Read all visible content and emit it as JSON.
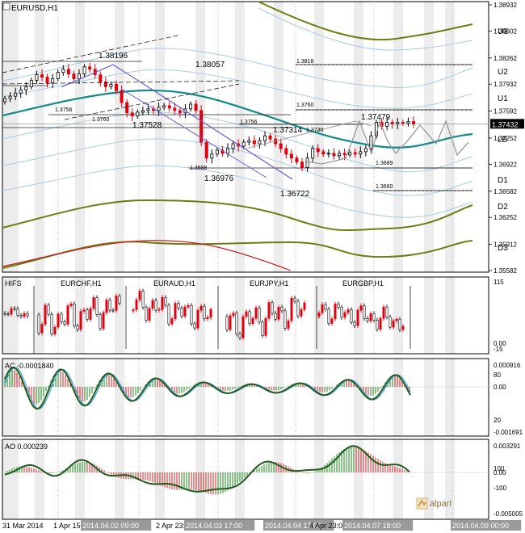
{
  "chart_data": [
    {
      "type": "line",
      "title": "EURUSD,H1",
      "y_labels": [
        "1.38932",
        "1.38602",
        "1.38262",
        "1.37932",
        "1.37592",
        "1.37432",
        "1.37252",
        "1.36922",
        "1.36582",
        "1.36252",
        "1.35912",
        "1.35582"
      ],
      "current_price": "1.37432",
      "ylim": [
        1.35582,
        1.38932
      ],
      "band_labels": [
        "U3",
        "U2",
        "U1",
        "LB",
        "D1",
        "D2",
        "D3"
      ],
      "annotations": [
        "1.38196",
        "1.38057",
        "1.37528",
        "1.37479",
        "1.37314",
        "1.36976",
        "1.36722",
        "1.3818",
        "1.3760",
        "1.3756",
        "1.3760",
        "1.3756",
        "1.3730",
        "1.3689",
        "1.3688",
        "1.3660"
      ],
      "close_series": [
        1.3775,
        1.3778,
        1.3782,
        1.3786,
        1.379,
        1.3798,
        1.3805,
        1.3802,
        1.3795,
        1.38,
        1.3808,
        1.3812,
        1.3806,
        1.38,
        1.3806,
        1.3815,
        1.3812,
        1.3805,
        1.3796,
        1.379,
        1.3793,
        1.3785,
        1.377,
        1.3757,
        1.3753,
        1.3758,
        1.376,
        1.3762,
        1.376,
        1.3764,
        1.3766,
        1.3763,
        1.376,
        1.3757,
        1.3762,
        1.3768,
        1.376,
        1.372,
        1.37,
        1.3705,
        1.371,
        1.3706,
        1.3712,
        1.3718,
        1.3715,
        1.372,
        1.3722,
        1.3718,
        1.3722,
        1.3728,
        1.3724,
        1.3718,
        1.3712,
        1.3705,
        1.37,
        1.3695,
        1.3688,
        1.37,
        1.3712,
        1.3708,
        1.3705,
        1.3706,
        1.3703,
        1.3706,
        1.3704,
        1.3707,
        1.3705,
        1.3708,
        1.3712,
        1.3728,
        1.3745,
        1.374,
        1.3745,
        1.3743,
        1.3745,
        1.3744,
        1.3746,
        1.3743
      ]
    },
    {
      "type": "bar",
      "title": "HIFS",
      "series_names": [
        "EURCHF,H1",
        "EURAUD,H1",
        "EURJPY,H1",
        "EURGBP,H1"
      ],
      "y_labels": [
        "115",
        "0.00",
        "-15"
      ],
      "ylim": [
        -15,
        115
      ]
    },
    {
      "type": "bar",
      "title": "AC -0.0001840",
      "y_labels": [
        "0.000916",
        "80",
        "0.00",
        "20",
        "-0.001691"
      ]
    },
    {
      "type": "bar",
      "title": "AO 0.000239",
      "y_labels": [
        "0.003291",
        "100",
        "0.00",
        "-100",
        "-0.005005"
      ]
    }
  ],
  "x_axis_labels": [
    "31 Mar 2014",
    "1 Apr 15:00",
    "2014.04.02 09:00",
    "2 Apr 23:00",
    "2014.04.03 17:00",
    "2014.04.04 17:00",
    "4 Apr 23:00",
    "2014.04.07 18:00",
    "2014.04.09 00:00"
  ],
  "brand": {
    "name": "alpari",
    "logo_icon": "alpari-logo-icon"
  },
  "colors": {
    "candle_up": "#000000",
    "candle_down": "#e0000f",
    "band_outer": "#6b7d10",
    "band_mid": "#138a8a",
    "band_thin": "#a6cde6",
    "trend_channel": "#6a5acd",
    "projection": "#999999",
    "ac_ao_line": "#1f5a1f"
  }
}
